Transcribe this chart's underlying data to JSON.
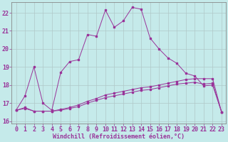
{
  "xlabel": "Windchill (Refroidissement éolien,°C)",
  "bg_color": "#c5eaea",
  "line_color": "#993399",
  "grid_color": "#b0c8c8",
  "xlim": [
    -0.5,
    23.5
  ],
  "ylim": [
    15.85,
    22.6
  ],
  "xticks": [
    0,
    1,
    2,
    3,
    4,
    5,
    6,
    7,
    8,
    9,
    10,
    11,
    12,
    13,
    14,
    15,
    16,
    17,
    18,
    19,
    20,
    21,
    22,
    23
  ],
  "yticks": [
    16,
    17,
    18,
    19,
    20,
    21,
    22
  ],
  "line1_x": [
    0,
    1,
    2,
    3,
    4,
    5,
    6,
    7,
    8,
    9,
    10,
    11,
    12,
    13,
    14,
    15,
    16,
    17,
    18,
    19,
    20,
    21,
    22,
    23
  ],
  "line1_y": [
    16.6,
    17.4,
    19.0,
    17.0,
    16.6,
    18.7,
    19.3,
    19.4,
    20.8,
    20.7,
    22.15,
    21.2,
    21.55,
    22.3,
    22.2,
    20.6,
    20.0,
    19.5,
    19.2,
    18.65,
    18.5,
    17.95,
    18.0,
    16.5
  ],
  "line2_x": [
    0,
    1,
    2,
    3,
    4,
    5,
    6,
    7,
    8,
    9,
    10,
    11,
    12,
    13,
    14,
    15,
    16,
    17,
    18,
    19,
    20,
    21,
    22,
    23
  ],
  "line2_y": [
    16.6,
    16.7,
    16.55,
    16.55,
    16.55,
    16.65,
    16.75,
    16.9,
    17.1,
    17.25,
    17.45,
    17.55,
    17.65,
    17.75,
    17.85,
    17.9,
    18.0,
    18.1,
    18.2,
    18.3,
    18.35,
    18.35,
    18.35,
    16.5
  ],
  "line3_x": [
    0,
    1,
    2,
    3,
    4,
    5,
    6,
    7,
    8,
    9,
    10,
    11,
    12,
    13,
    14,
    15,
    16,
    17,
    18,
    19,
    20,
    21,
    22,
    23
  ],
  "line3_y": [
    16.6,
    16.75,
    16.55,
    16.55,
    16.55,
    16.6,
    16.7,
    16.8,
    17.0,
    17.15,
    17.3,
    17.4,
    17.5,
    17.6,
    17.7,
    17.75,
    17.85,
    17.95,
    18.05,
    18.1,
    18.15,
    18.05,
    18.1,
    16.5
  ],
  "xlabel_fontsize": 6.0,
  "tick_fontsize": 6.0
}
